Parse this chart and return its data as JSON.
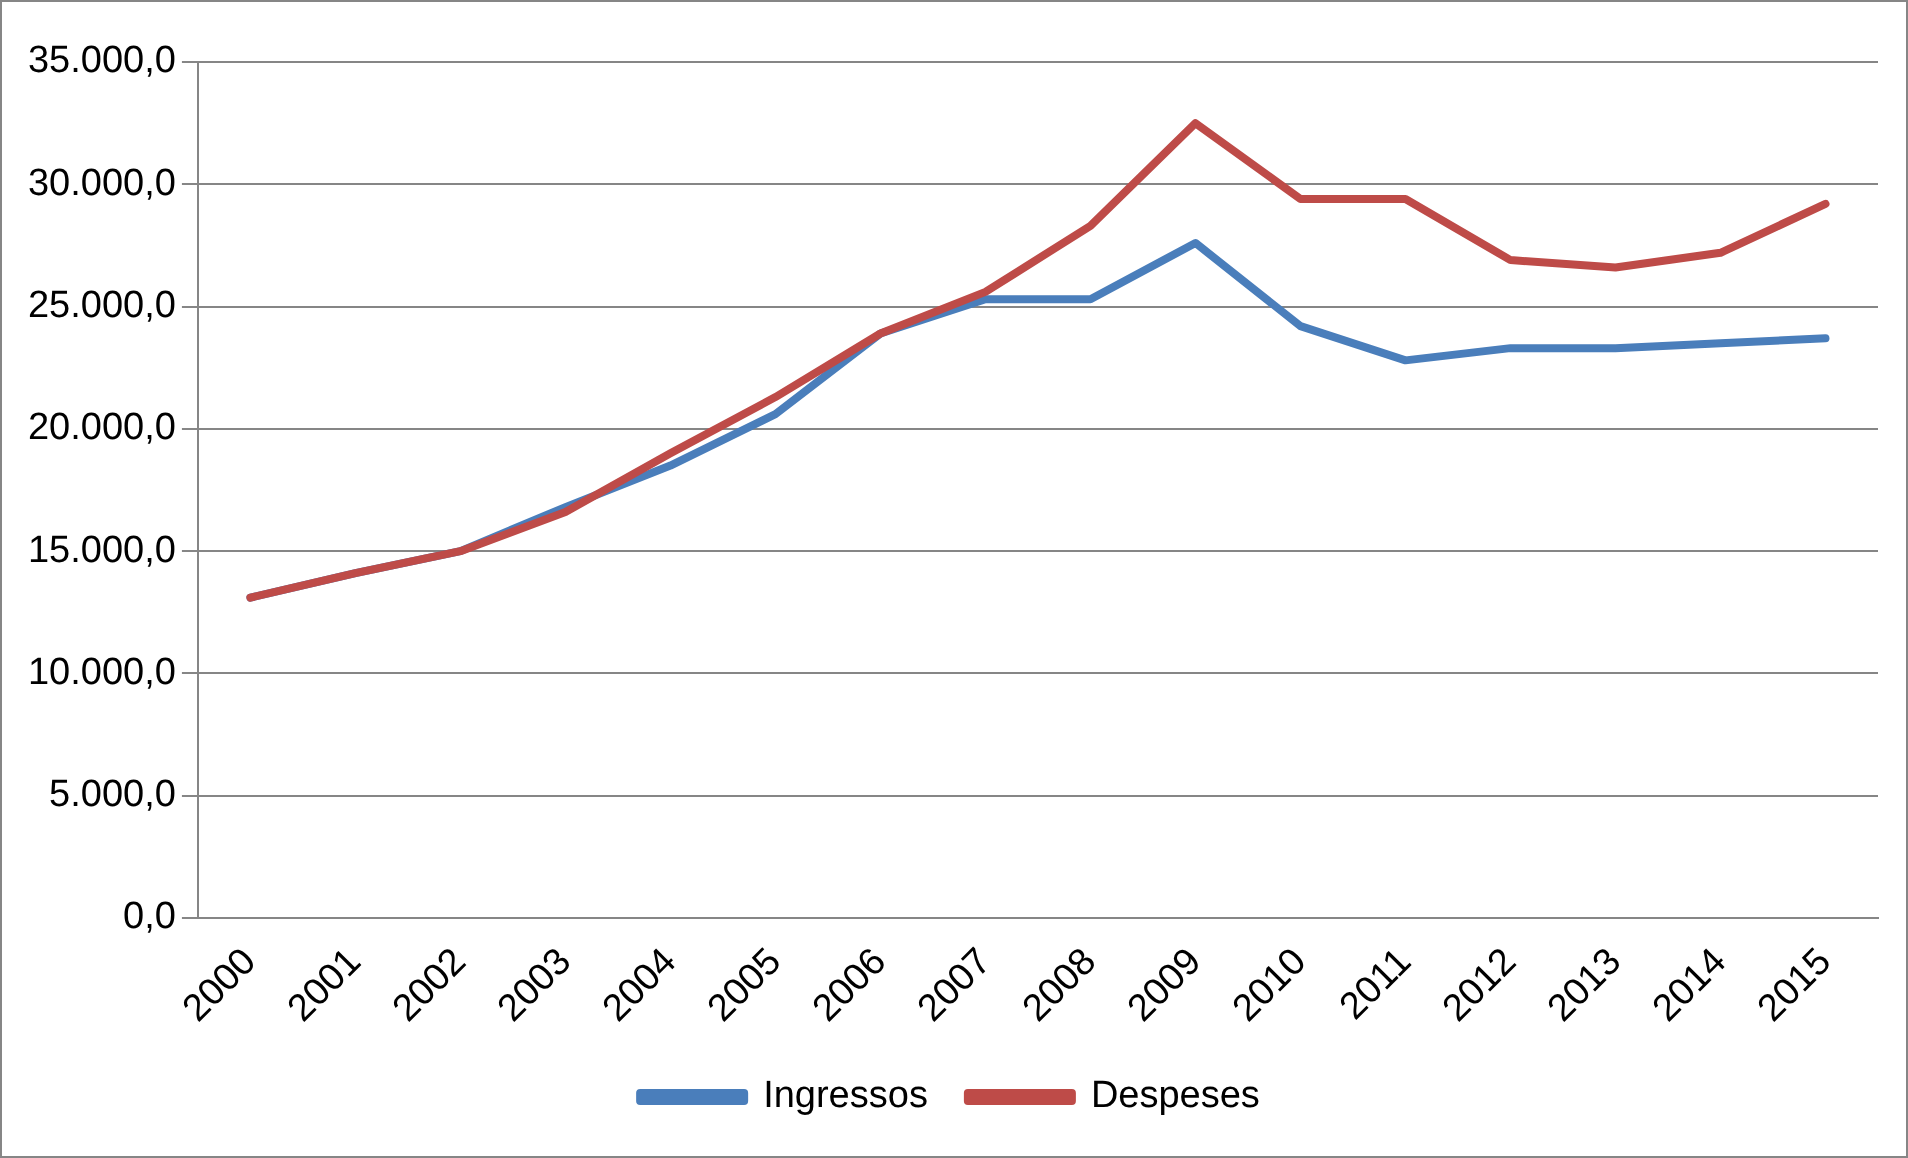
{
  "chart_data": {
    "type": "line",
    "categories": [
      "2000",
      "2001",
      "2002",
      "2003",
      "2004",
      "2005",
      "2006",
      "2007",
      "2008",
      "2009",
      "2010",
      "2011",
      "2012",
      "2013",
      "2014",
      "2015"
    ],
    "series": [
      {
        "name": "Ingressos",
        "color": "#4a7ebb",
        "values": [
          13100,
          14100,
          15000,
          16800,
          18500,
          20600,
          23900,
          25300,
          25300,
          27600,
          24200,
          22800,
          23300,
          23300,
          23500,
          23700
        ]
      },
      {
        "name": "Despeses",
        "color": "#be4b48",
        "values": [
          13100,
          14100,
          15000,
          16600,
          19000,
          21300,
          23900,
          25600,
          28300,
          32500,
          29400,
          29400,
          26900,
          26600,
          27200,
          29200
        ]
      }
    ],
    "ylim": [
      0,
      35000
    ],
    "yticks": [
      {
        "value": 0,
        "label": "0,0"
      },
      {
        "value": 5000,
        "label": "5.000,0"
      },
      {
        "value": 10000,
        "label": "10.000,0"
      },
      {
        "value": 15000,
        "label": "15.000,0"
      },
      {
        "value": 20000,
        "label": "20.000,0"
      },
      {
        "value": 25000,
        "label": "25.000,0"
      },
      {
        "value": 30000,
        "label": "30.000,0"
      },
      {
        "value": 35000,
        "label": "35.000,0"
      }
    ],
    "grid": "y",
    "legend": "bottom",
    "marker": "none",
    "line_style": "solid"
  }
}
